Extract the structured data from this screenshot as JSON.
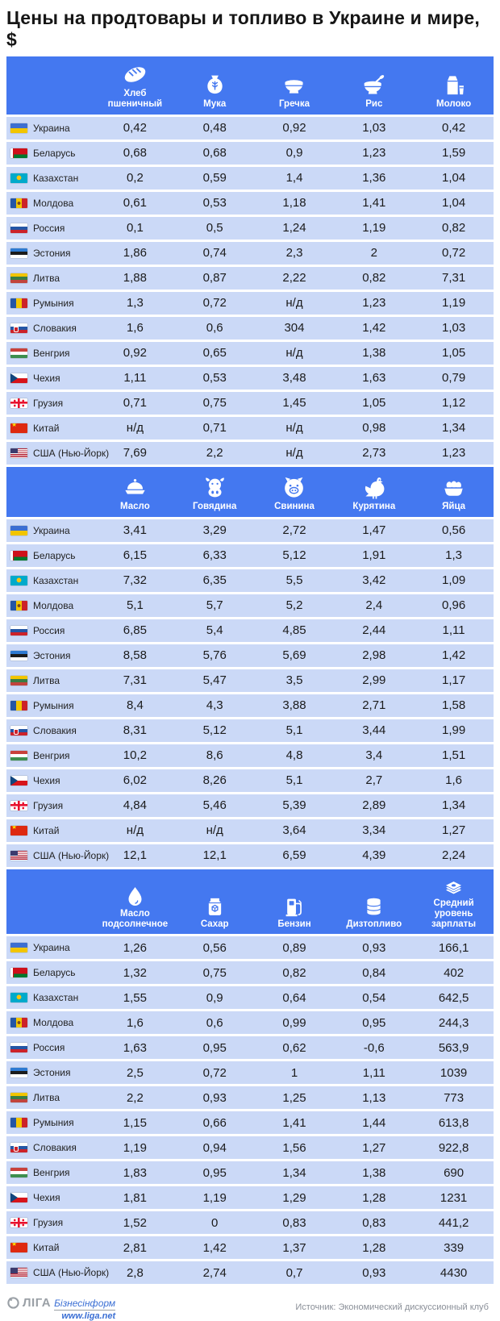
{
  "title": "Цены на продтовары и топливо в Украине и мире, $",
  "colors": {
    "accent": "#4478F0",
    "row_background": "#CBD9F7",
    "value_text": "#1B1B1B"
  },
  "countries": [
    {
      "id": "ukraine",
      "flag": "ua",
      "name": "Украина"
    },
    {
      "id": "belarus",
      "flag": "by",
      "name": "Беларусь"
    },
    {
      "id": "kazakhstan",
      "flag": "kz",
      "name": "Казахстан"
    },
    {
      "id": "moldova",
      "flag": "md",
      "name": "Молдова"
    },
    {
      "id": "russia",
      "flag": "ru",
      "name": "Россия"
    },
    {
      "id": "estonia",
      "flag": "ee",
      "name": "Эстония"
    },
    {
      "id": "lithuania",
      "flag": "lt",
      "name": "Литва"
    },
    {
      "id": "romania",
      "flag": "ro",
      "name": "Румыния"
    },
    {
      "id": "slovakia",
      "flag": "sk",
      "name": "Словакия"
    },
    {
      "id": "hungary",
      "flag": "hu",
      "name": "Венгрия"
    },
    {
      "id": "czechia",
      "flag": "cz",
      "name": "Чехия"
    },
    {
      "id": "georgia",
      "flag": "ge",
      "name": "Грузия"
    },
    {
      "id": "china",
      "flag": "cn",
      "name": "Китай"
    },
    {
      "id": "usa",
      "flag": "us",
      "name": "США (Нью-Йорк)"
    }
  ],
  "chart_data": [
    {
      "type": "table",
      "columns": [
        {
          "label": "Хлеб пшеничный",
          "icon": "bread-icon"
        },
        {
          "label": "Мука",
          "icon": "flour-icon"
        },
        {
          "label": "Гречка",
          "icon": "buckwheat-icon"
        },
        {
          "label": "Рис",
          "icon": "rice-icon"
        },
        {
          "label": "Молоко",
          "icon": "milk-icon"
        }
      ],
      "rows": [
        [
          "0,42",
          "0,48",
          "0,92",
          "1,03",
          "0,42"
        ],
        [
          "0,68",
          "0,68",
          "0,9",
          "1,23",
          "1,59"
        ],
        [
          "0,2",
          "0,59",
          "1,4",
          "1,36",
          "1,04"
        ],
        [
          "0,61",
          "0,53",
          "1,18",
          "1,41",
          "1,04"
        ],
        [
          "0,1",
          "0,5",
          "1,24",
          "1,19",
          "0,82"
        ],
        [
          "1,86",
          "0,74",
          "2,3",
          "2",
          "0,72"
        ],
        [
          "1,88",
          "0,87",
          "2,22",
          "0,82",
          "7,31"
        ],
        [
          "1,3",
          "0,72",
          "н/д",
          "1,23",
          "1,19"
        ],
        [
          "1,6",
          "0,6",
          "304",
          "1,42",
          "1,03"
        ],
        [
          "0,92",
          "0,65",
          "н/д",
          "1,38",
          "1,05"
        ],
        [
          "1,11",
          "0,53",
          "3,48",
          "1,63",
          "0,79"
        ],
        [
          "0,71",
          "0,75",
          "1,45",
          "1,05",
          "1,12"
        ],
        [
          "н/д",
          "0,71",
          "н/д",
          "0,98",
          "1,34"
        ],
        [
          "7,69",
          "2,2",
          "н/д",
          "2,73",
          "1,23"
        ]
      ]
    },
    {
      "type": "table",
      "columns": [
        {
          "label": "Масло",
          "icon": "butter-icon"
        },
        {
          "label": "Говядина",
          "icon": "beef-icon"
        },
        {
          "label": "Свинина",
          "icon": "pork-icon"
        },
        {
          "label": "Курятина",
          "icon": "chicken-icon"
        },
        {
          "label": "Яйца",
          "icon": "eggs-icon"
        }
      ],
      "rows": [
        [
          "3,41",
          "3,29",
          "2,72",
          "1,47",
          "0,56"
        ],
        [
          "6,15",
          "6,33",
          "5,12",
          "1,91",
          "1,3"
        ],
        [
          "7,32",
          "6,35",
          "5,5",
          "3,42",
          "1,09"
        ],
        [
          "5,1",
          "5,7",
          "5,2",
          "2,4",
          "0,96"
        ],
        [
          "6,85",
          "5,4",
          "4,85",
          "2,44",
          "1,11"
        ],
        [
          "8,58",
          "5,76",
          "5,69",
          "2,98",
          "1,42"
        ],
        [
          "7,31",
          "5,47",
          "3,5",
          "2,99",
          "1,17"
        ],
        [
          "8,4",
          "4,3",
          "3,88",
          "2,71",
          "1,58"
        ],
        [
          "8,31",
          "5,12",
          "5,1",
          "3,44",
          "1,99"
        ],
        [
          "10,2",
          "8,6",
          "4,8",
          "3,4",
          "1,51"
        ],
        [
          "6,02",
          "8,26",
          "5,1",
          "2,7",
          "1,6"
        ],
        [
          "4,84",
          "5,46",
          "5,39",
          "2,89",
          "1,34"
        ],
        [
          "н/д",
          "н/д",
          "3,64",
          "3,34",
          "1,27"
        ],
        [
          "12,1",
          "12,1",
          "6,59",
          "4,39",
          "2,24"
        ]
      ]
    },
    {
      "type": "table",
      "columns": [
        {
          "label": "Масло подсолнечное",
          "icon": "sunflower-oil-icon"
        },
        {
          "label": "Сахар",
          "icon": "sugar-icon"
        },
        {
          "label": "Бензин",
          "icon": "petrol-icon"
        },
        {
          "label": "Дизтопливо",
          "icon": "diesel-icon"
        },
        {
          "label": "Средний уровень зарплаты",
          "icon": "salary-icon"
        }
      ],
      "rows": [
        [
          "1,26",
          "0,56",
          "0,89",
          "0,93",
          "166,1"
        ],
        [
          "1,32",
          "0,75",
          "0,82",
          "0,84",
          "402"
        ],
        [
          "1,55",
          "0,9",
          "0,64",
          "0,54",
          "642,5"
        ],
        [
          "1,6",
          "0,6",
          "0,99",
          "0,95",
          "244,3"
        ],
        [
          "1,63",
          "0,95",
          "0,62",
          "-0,6",
          "563,9"
        ],
        [
          "2,5",
          "0,72",
          "1",
          "1,11",
          "1039"
        ],
        [
          "2,2",
          "0,93",
          "1,25",
          "1,13",
          "773"
        ],
        [
          "1,15",
          "0,66",
          "1,41",
          "1,44",
          "613,8"
        ],
        [
          "1,19",
          "0,94",
          "1,56",
          "1,27",
          "922,8"
        ],
        [
          "1,83",
          "0,95",
          "1,34",
          "1,38",
          "690"
        ],
        [
          "1,81",
          "1,19",
          "1,29",
          "1,28",
          "1231"
        ],
        [
          "1,52",
          "0",
          "0,83",
          "0,83",
          "441,2"
        ],
        [
          "2,81",
          "1,42",
          "1,37",
          "1,28",
          "339"
        ],
        [
          "2,8",
          "2,74",
          "0,7",
          "0,93",
          "4430"
        ]
      ]
    }
  ],
  "footer": {
    "logo_name": "ЛІГА",
    "logo_sub": "Бізнесінформ",
    "logo_url": "www.liga.net",
    "source": "Источник: Экономический дискуссионный клуб"
  }
}
